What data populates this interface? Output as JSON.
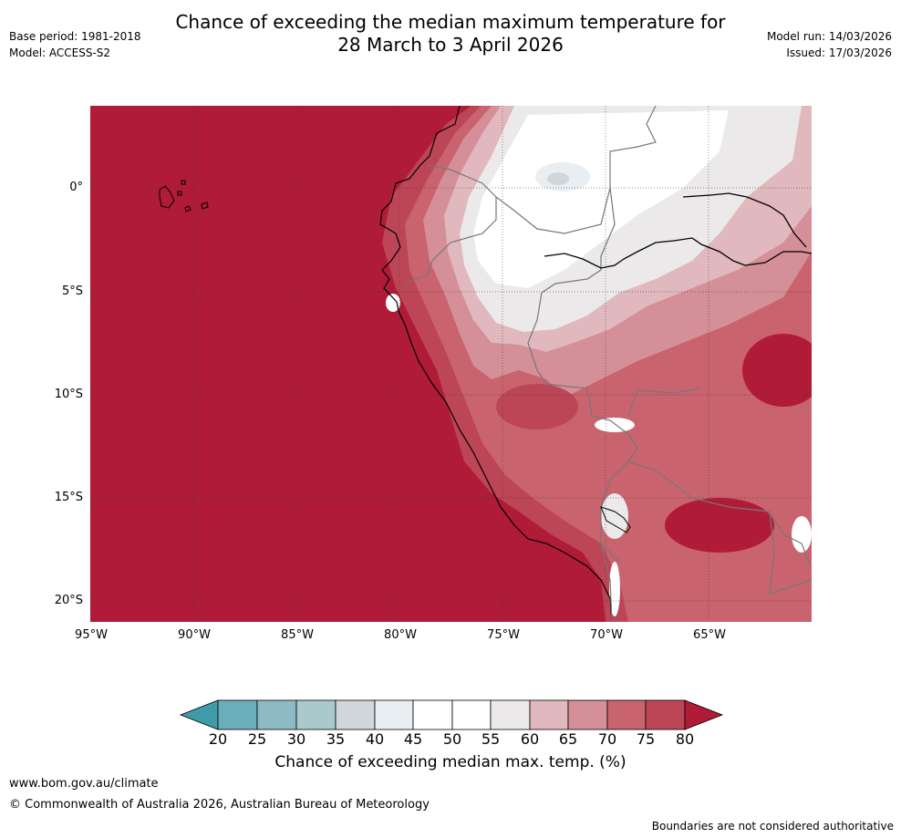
{
  "title_line1": "Chance of exceeding the median maximum temperature for",
  "title_line2": "28 March to 3 April 2026",
  "base_period": "Base period: 1981-2018",
  "model": "Model: ACCESS-S2",
  "model_run": "Model run: 14/03/2026",
  "issued": "Issued: 17/03/2026",
  "lat_ticks": [
    "0°",
    "5°S",
    "10°S",
    "15°S",
    "20°S"
  ],
  "lon_ticks": [
    "95°W",
    "90°W",
    "85°W",
    "80°W",
    "75°W",
    "70°W",
    "65°W"
  ],
  "colorbar": {
    "ticks": [
      "20",
      "25",
      "30",
      "35",
      "40",
      "45",
      "50",
      "55",
      "60",
      "65",
      "70",
      "75",
      "80"
    ],
    "label": "Chance of exceeding median max. temp. (%)",
    "colors": {
      "lt20": "#3f9ba8",
      "20_25": "#6aaeba",
      "25_30": "#8dbac4",
      "30_35": "#a9c9cd",
      "35_40": "#d0d6d9",
      "40_45": "#e8eef1",
      "45_50": "#ffffff",
      "50_55": "#ffffff",
      "55_60": "#ebe9ea",
      "60_65": "#e0b8bd",
      "65_70": "#d48f98",
      "70_75": "#c9636e",
      "75_80": "#bd4656",
      "gt80": "#b01c37"
    }
  },
  "website": "www.bom.gov.au/climate",
  "copyright": "© Commonwealth of Australia 2026, Australian Bureau of Meteorology",
  "disclaimer": "Boundaries are not considered authoritative"
}
